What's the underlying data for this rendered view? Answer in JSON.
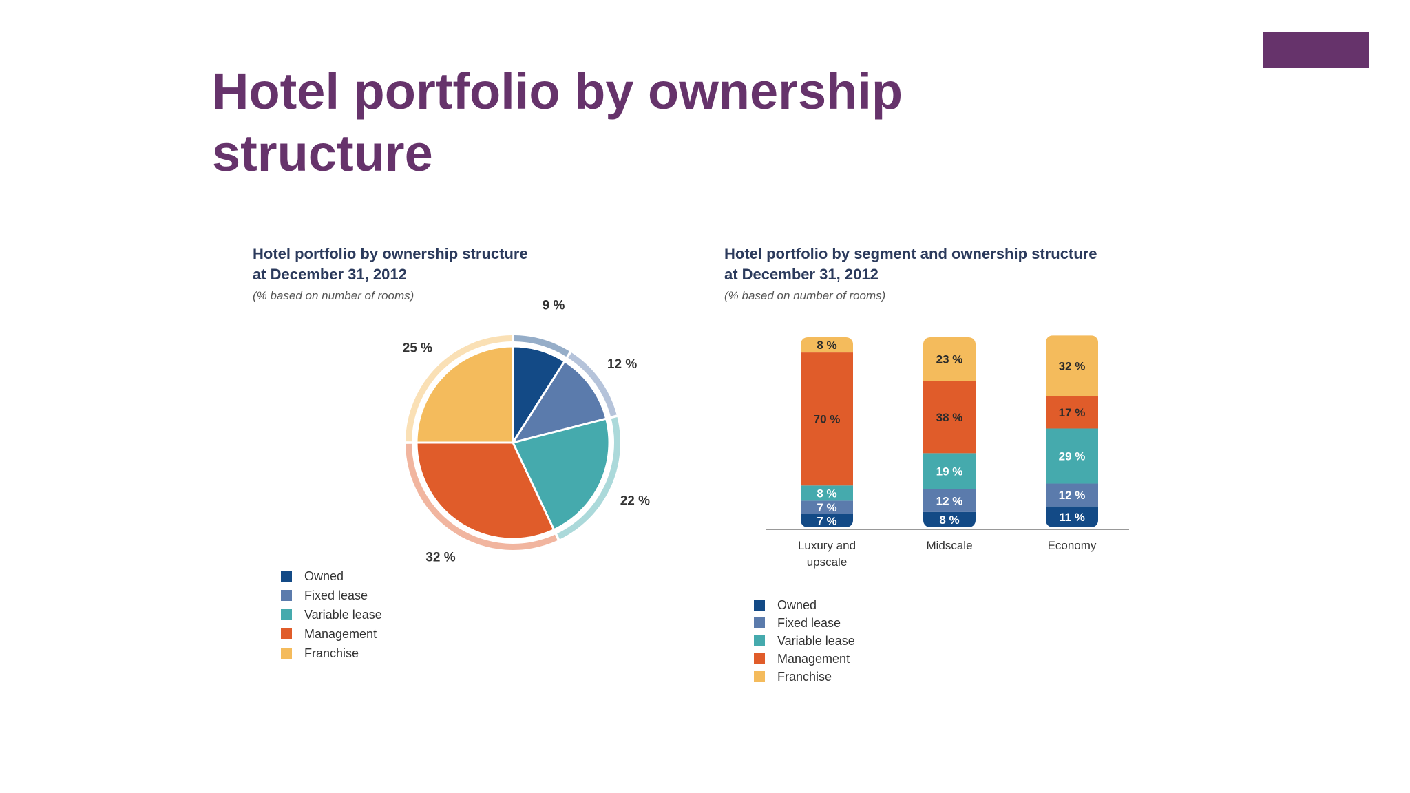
{
  "slide": {
    "title_line1": "Hotel portfolio by ownership",
    "title_line2": "structure",
    "accent_color": "#66336b"
  },
  "colors": {
    "Owned": "#134a86",
    "Fixed lease": "#5b7bac",
    "Variable lease": "#45aaad",
    "Management": "#e05c2a",
    "Franchise": "#f4bb5c"
  },
  "chart_data": [
    {
      "type": "pie",
      "title": "Hotel portfolio by ownership structure at December 31, 2012",
      "title_line1": "Hotel portfolio by ownership structure",
      "title_line2": "at December 31, 2012",
      "subtitle": "(% based on number of rooms)",
      "categories": [
        "Owned",
        "Fixed lease",
        "Variable lease",
        "Management",
        "Franchise"
      ],
      "values": [
        9,
        12,
        22,
        32,
        25
      ],
      "labels": [
        "9 %",
        "12 %",
        "22 %",
        "32 %",
        "25 %"
      ],
      "legend": [
        "Owned",
        "Fixed lease",
        "Variable lease",
        "Management",
        "Franchise"
      ],
      "legend_position": "bottom-left"
    },
    {
      "type": "bar",
      "stacked": true,
      "title": "Hotel portfolio by segment and ownership structure at December 31, 2012",
      "title_line1": "Hotel portfolio by segment and ownership structure",
      "title_line2": "at December 31, 2012",
      "subtitle": "(% based on number of rooms)",
      "categories": [
        "Luxury and upscale",
        "Midscale",
        "Economy"
      ],
      "category_lines": [
        [
          "Luxury and",
          "upscale"
        ],
        [
          "Midscale"
        ],
        [
          "Economy"
        ]
      ],
      "ylim": [
        0,
        100
      ],
      "series": [
        {
          "name": "Owned",
          "values": [
            7,
            8,
            11
          ],
          "labels": [
            "7 %",
            "8 %",
            "11 %"
          ]
        },
        {
          "name": "Fixed lease",
          "values": [
            7,
            12,
            12
          ],
          "labels": [
            "7 %",
            "12 %",
            "12 %"
          ]
        },
        {
          "name": "Variable lease",
          "values": [
            8,
            19,
            29
          ],
          "labels": [
            "8 %",
            "19 %",
            "29 %"
          ]
        },
        {
          "name": "Management",
          "values": [
            70,
            38,
            17
          ],
          "labels": [
            "70 %",
            "38 %",
            "17 %"
          ]
        },
        {
          "name": "Franchise",
          "values": [
            8,
            23,
            32
          ],
          "labels": [
            "8 %",
            "23 %",
            "32 %"
          ]
        }
      ],
      "legend": [
        "Owned",
        "Fixed lease",
        "Variable lease",
        "Management",
        "Franchise"
      ],
      "legend_position": "bottom-left"
    }
  ]
}
